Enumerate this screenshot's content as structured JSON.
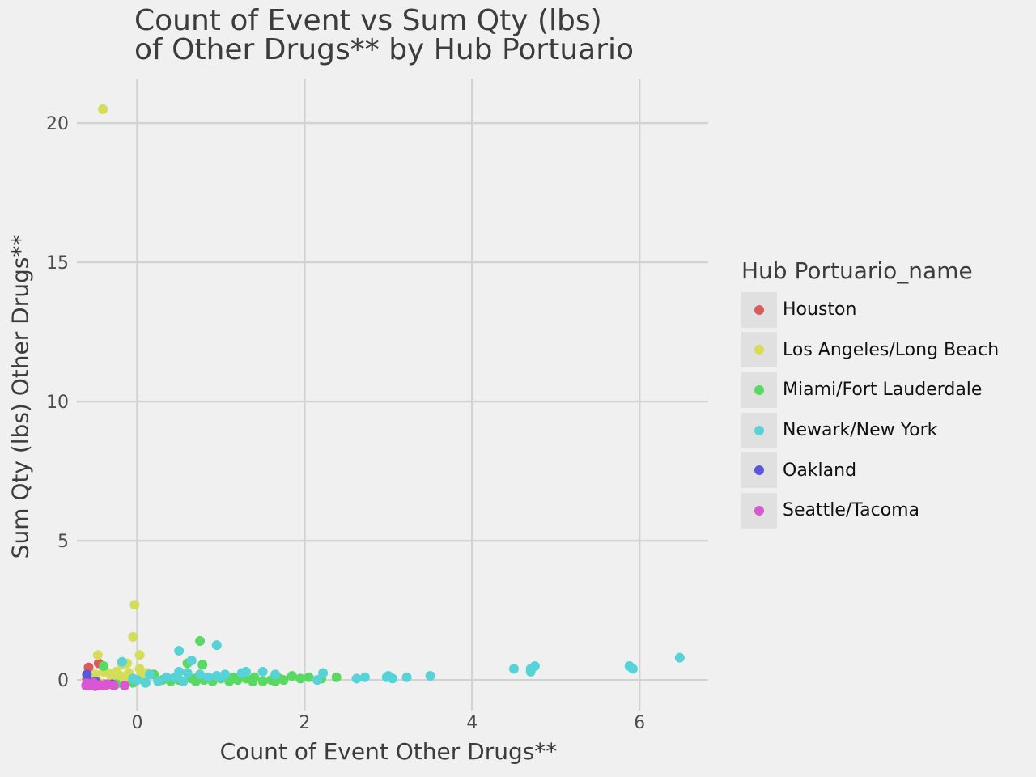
{
  "chart_data": {
    "type": "scatter",
    "title_lines": [
      "Count of Event vs Sum Qty (lbs)",
      "of Other Drugs** by Hub Portuario"
    ],
    "xlabel": "Count of Event Other Drugs**",
    "ylabel": "Sum Qty (lbs) Other Drugs**",
    "xlim": [
      -0.72,
      6.82
    ],
    "ylim": [
      -1.1,
      21.6
    ],
    "xticks": [
      0,
      2,
      4,
      6
    ],
    "yticks": [
      0,
      5,
      10,
      15,
      20
    ],
    "grid": true,
    "legend": {
      "title": "Hub Portuario_name",
      "position": "right",
      "entries": [
        {
          "name": "Houston",
          "color": "#d95b5b"
        },
        {
          "name": "Los Angeles/Long Beach",
          "color": "#d3dd57"
        },
        {
          "name": "Miami/Fort Lauderdale",
          "color": "#57d962"
        },
        {
          "name": "Newark/New York",
          "color": "#57d3d8"
        },
        {
          "name": "Oakland",
          "color": "#5b57d9"
        },
        {
          "name": "Seattle/Tacoma",
          "color": "#d957d3"
        }
      ]
    },
    "series": [
      {
        "name": "Houston",
        "points": [
          [
            -0.58,
            0.45
          ],
          [
            -0.46,
            0.6
          ],
          [
            -0.5,
            0.15
          ],
          [
            -0.56,
            -0.1
          ],
          [
            -0.4,
            -0.15
          ],
          [
            -0.6,
            0.05
          ],
          [
            -0.52,
            -0.2
          ]
        ]
      },
      {
        "name": "Los Angeles/Long Beach",
        "points": [
          [
            -0.41,
            20.5
          ],
          [
            -0.03,
            2.7
          ],
          [
            -0.05,
            1.55
          ],
          [
            -0.47,
            0.9
          ],
          [
            0.03,
            0.9
          ],
          [
            -0.12,
            0.6
          ],
          [
            -0.18,
            0.55
          ],
          [
            -0.5,
            0.2
          ],
          [
            -0.35,
            0.25
          ],
          [
            -0.3,
            0.2
          ],
          [
            -0.25,
            0.3
          ],
          [
            -0.2,
            0.15
          ],
          [
            -0.1,
            0.25
          ],
          [
            0.03,
            0.4
          ],
          [
            0.05,
            0.2
          ],
          [
            -0.45,
            -0.1
          ],
          [
            -0.15,
            0.05
          ],
          [
            -0.3,
            0.1
          ],
          [
            0.12,
            0.25
          ],
          [
            -0.08,
            0.1
          ],
          [
            -0.4,
            0.3
          ],
          [
            -0.48,
            -0.15
          ]
        ]
      },
      {
        "name": "Miami/Fort Lauderdale",
        "points": [
          [
            0.75,
            1.4
          ],
          [
            0.78,
            0.55
          ],
          [
            0.6,
            0.6
          ],
          [
            0.72,
            0.1
          ],
          [
            -0.4,
            0.5
          ],
          [
            -0.25,
            -0.15
          ],
          [
            -0.05,
            -0.1
          ],
          [
            0.1,
            -0.1
          ],
          [
            0.2,
            0.2
          ],
          [
            0.3,
            0.0
          ],
          [
            0.4,
            -0.05
          ],
          [
            0.5,
            0.0
          ],
          [
            0.55,
            -0.05
          ],
          [
            0.65,
            0.05
          ],
          [
            0.7,
            -0.05
          ],
          [
            0.8,
            0.0
          ],
          [
            0.9,
            -0.05
          ],
          [
            1.0,
            0.05
          ],
          [
            1.1,
            -0.05
          ],
          [
            1.15,
            0.1
          ],
          [
            1.2,
            0.0
          ],
          [
            1.3,
            0.05
          ],
          [
            1.4,
            0.1
          ],
          [
            1.5,
            -0.05
          ],
          [
            1.6,
            0.0
          ],
          [
            1.7,
            0.05
          ],
          [
            1.75,
            0.0
          ],
          [
            1.85,
            0.15
          ],
          [
            1.95,
            0.05
          ],
          [
            2.05,
            0.1
          ],
          [
            2.2,
            0.05
          ],
          [
            2.38,
            0.1
          ],
          [
            1.38,
            -0.05
          ],
          [
            1.65,
            -0.05
          ]
        ]
      },
      {
        "name": "Newark/New York",
        "points": [
          [
            6.48,
            0.8
          ],
          [
            5.88,
            0.5
          ],
          [
            5.92,
            0.4
          ],
          [
            4.75,
            0.5
          ],
          [
            4.7,
            0.4
          ],
          [
            4.7,
            0.3
          ],
          [
            4.5,
            0.4
          ],
          [
            0.5,
            1.05
          ],
          [
            0.95,
            1.25
          ],
          [
            0.65,
            0.7
          ],
          [
            -0.18,
            0.65
          ],
          [
            3.5,
            0.15
          ],
          [
            3.22,
            0.1
          ],
          [
            3.05,
            0.05
          ],
          [
            3.0,
            0.15
          ],
          [
            2.98,
            0.1
          ],
          [
            2.72,
            0.1
          ],
          [
            2.62,
            0.05
          ],
          [
            2.22,
            0.25
          ],
          [
            2.15,
            0.0
          ],
          [
            1.65,
            0.2
          ],
          [
            1.5,
            0.3
          ],
          [
            1.3,
            0.3
          ],
          [
            1.25,
            0.25
          ],
          [
            1.05,
            0.2
          ],
          [
            0.95,
            0.15
          ],
          [
            0.85,
            0.1
          ],
          [
            0.75,
            0.2
          ],
          [
            0.6,
            0.25
          ],
          [
            0.5,
            0.3
          ],
          [
            0.45,
            0.1
          ],
          [
            0.35,
            0.1
          ],
          [
            0.25,
            -0.05
          ],
          [
            0.15,
            0.2
          ],
          [
            -0.05,
            0.05
          ],
          [
            0.0,
            0.0
          ],
          [
            0.1,
            -0.1
          ],
          [
            1.0,
            0.1
          ],
          [
            0.55,
            -0.05
          ]
        ]
      },
      {
        "name": "Oakland",
        "points": [
          [
            -0.6,
            0.2
          ],
          [
            -0.58,
            -0.1
          ],
          [
            -0.5,
            -0.05
          ],
          [
            -0.3,
            -0.15
          ],
          [
            -0.45,
            -0.2
          ]
        ]
      },
      {
        "name": "Seattle/Tacoma",
        "points": [
          [
            -0.61,
            -0.2
          ],
          [
            -0.58,
            -0.2
          ],
          [
            -0.55,
            -0.15
          ],
          [
            -0.5,
            -0.22
          ],
          [
            -0.45,
            -0.2
          ],
          [
            -0.42,
            -0.18
          ],
          [
            -0.38,
            -0.2
          ],
          [
            -0.35,
            -0.15
          ],
          [
            -0.28,
            -0.2
          ],
          [
            -0.15,
            -0.2
          ],
          [
            -0.6,
            -0.12
          ],
          [
            -0.52,
            -0.1
          ]
        ]
      }
    ]
  }
}
